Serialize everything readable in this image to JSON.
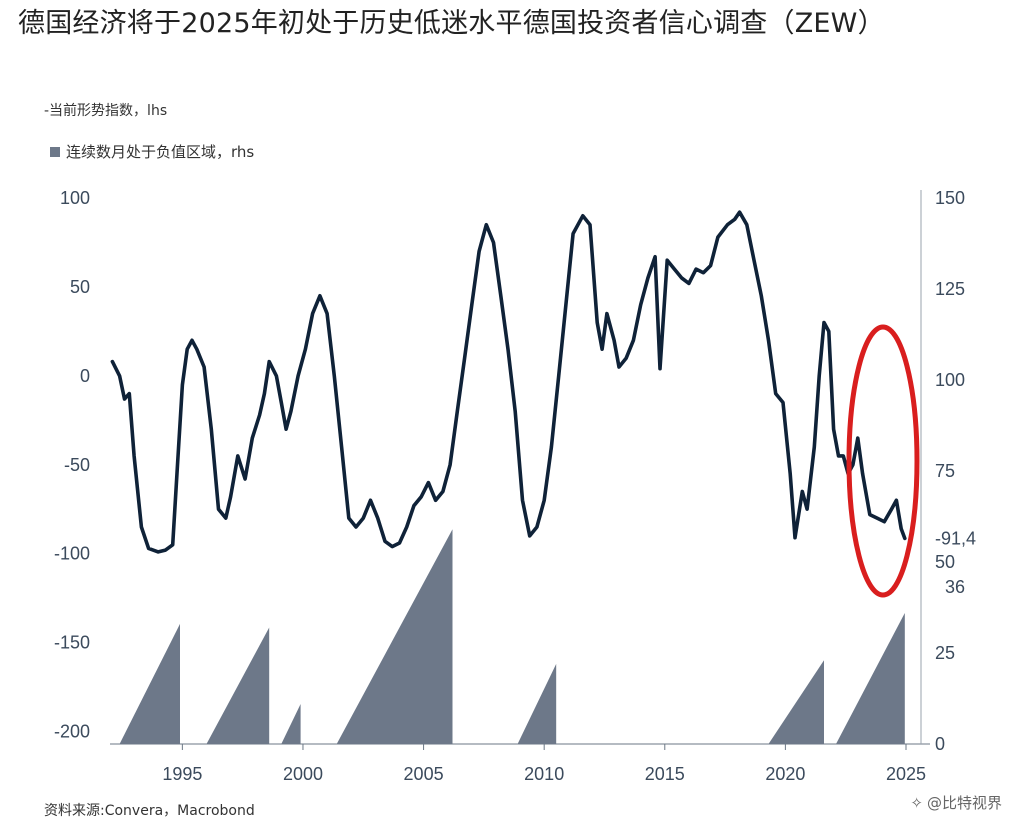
{
  "title": "德国经济将于2025年初处于历史低迷水平德国投资者信心调查（ZEW）",
  "legend": {
    "line_label": "-当前形势指数，lhs",
    "area_label": "连续数月处于负值区域，rhs",
    "area_color": "#6d7889",
    "line_color": "#0f2238"
  },
  "source": "资料来源:Convera，Macrobond",
  "watermark": "@比特视界",
  "highlight_color": "#d91e1e",
  "chart_data": {
    "type": "line",
    "x_ticks": [
      "1995",
      "2000",
      "2005",
      "2010",
      "2015",
      "2020",
      "2025"
    ],
    "y_left_ticks": [
      "100",
      "50",
      "0",
      "-50",
      "-100",
      "-150",
      "-200"
    ],
    "y_right_ticks": [
      "150",
      "125",
      "100",
      "75",
      "50",
      "25",
      "0"
    ],
    "ylim_left": [
      -207,
      100
    ],
    "ylim_right": [
      0,
      150
    ],
    "xlim": [
      1992.0,
      2025.0
    ],
    "annotations": [
      {
        "axis": "right",
        "label": "-91,4",
        "value": -91.4
      },
      {
        "axis": "right",
        "label": "36",
        "value": 36
      }
    ],
    "series": [
      {
        "axis": "left",
        "points": [
          [
            1992.1,
            8
          ],
          [
            1992.4,
            0
          ],
          [
            1992.6,
            -13
          ],
          [
            1992.8,
            -10
          ],
          [
            1993.0,
            -45
          ],
          [
            1993.3,
            -85
          ],
          [
            1993.6,
            -97
          ],
          [
            1994.0,
            -99
          ],
          [
            1994.3,
            -98
          ],
          [
            1994.6,
            -95
          ],
          [
            1994.8,
            -50
          ],
          [
            1995.0,
            -5
          ],
          [
            1995.2,
            15
          ],
          [
            1995.4,
            20
          ],
          [
            1995.6,
            15
          ],
          [
            1995.9,
            5
          ],
          [
            1996.2,
            -30
          ],
          [
            1996.5,
            -75
          ],
          [
            1996.8,
            -80
          ],
          [
            1997.0,
            -68
          ],
          [
            1997.3,
            -45
          ],
          [
            1997.6,
            -58
          ],
          [
            1997.9,
            -35
          ],
          [
            1998.2,
            -22
          ],
          [
            1998.4,
            -10
          ],
          [
            1998.6,
            8
          ],
          [
            1998.9,
            0
          ],
          [
            1999.1,
            -15
          ],
          [
            1999.3,
            -30
          ],
          [
            1999.5,
            -20
          ],
          [
            1999.8,
            0
          ],
          [
            2000.1,
            15
          ],
          [
            2000.4,
            35
          ],
          [
            2000.7,
            45
          ],
          [
            2001.0,
            35
          ],
          [
            2001.3,
            0
          ],
          [
            2001.6,
            -40
          ],
          [
            2001.9,
            -80
          ],
          [
            2002.2,
            -85
          ],
          [
            2002.5,
            -80
          ],
          [
            2002.8,
            -70
          ],
          [
            2003.1,
            -80
          ],
          [
            2003.4,
            -93
          ],
          [
            2003.7,
            -96
          ],
          [
            2004.0,
            -94
          ],
          [
            2004.3,
            -85
          ],
          [
            2004.6,
            -73
          ],
          [
            2004.9,
            -68
          ],
          [
            2005.2,
            -60
          ],
          [
            2005.5,
            -70
          ],
          [
            2005.8,
            -65
          ],
          [
            2006.1,
            -50
          ],
          [
            2006.4,
            -20
          ],
          [
            2006.7,
            10
          ],
          [
            2007.0,
            40
          ],
          [
            2007.3,
            70
          ],
          [
            2007.6,
            85
          ],
          [
            2007.9,
            75
          ],
          [
            2008.2,
            45
          ],
          [
            2008.5,
            15
          ],
          [
            2008.8,
            -20
          ],
          [
            2009.1,
            -70
          ],
          [
            2009.4,
            -90
          ],
          [
            2009.7,
            -85
          ],
          [
            2010.0,
            -70
          ],
          [
            2010.3,
            -40
          ],
          [
            2010.6,
            0
          ],
          [
            2010.9,
            40
          ],
          [
            2011.2,
            80
          ],
          [
            2011.6,
            90
          ],
          [
            2011.9,
            85
          ],
          [
            2012.2,
            30
          ],
          [
            2012.4,
            15
          ],
          [
            2012.6,
            35
          ],
          [
            2012.9,
            20
          ],
          [
            2013.1,
            5
          ],
          [
            2013.4,
            10
          ],
          [
            2013.7,
            20
          ],
          [
            2014.0,
            40
          ],
          [
            2014.3,
            55
          ],
          [
            2014.6,
            67
          ],
          [
            2014.8,
            4
          ],
          [
            2015.1,
            65
          ],
          [
            2015.4,
            60
          ],
          [
            2015.7,
            55
          ],
          [
            2016.0,
            52
          ],
          [
            2016.3,
            60
          ],
          [
            2016.6,
            58
          ],
          [
            2016.9,
            62
          ],
          [
            2017.2,
            78
          ],
          [
            2017.6,
            85
          ],
          [
            2017.9,
            88
          ],
          [
            2018.1,
            92
          ],
          [
            2018.4,
            85
          ],
          [
            2018.7,
            65
          ],
          [
            2019.0,
            45
          ],
          [
            2019.3,
            20
          ],
          [
            2019.6,
            -10
          ],
          [
            2019.9,
            -15
          ],
          [
            2020.2,
            -55
          ],
          [
            2020.4,
            -91
          ],
          [
            2020.7,
            -65
          ],
          [
            2020.9,
            -75
          ],
          [
            2021.2,
            -40
          ],
          [
            2021.4,
            0
          ],
          [
            2021.6,
            30
          ],
          [
            2021.8,
            25
          ],
          [
            2022.0,
            -30
          ],
          [
            2022.2,
            -45
          ],
          [
            2022.4,
            -45
          ],
          [
            2022.6,
            -55
          ],
          [
            2022.8,
            -50
          ],
          [
            2023.0,
            -35
          ],
          [
            2023.2,
            -55
          ],
          [
            2023.5,
            -78
          ],
          [
            2023.8,
            -80
          ],
          [
            2024.1,
            -82
          ],
          [
            2024.4,
            -75
          ],
          [
            2024.6,
            -70
          ],
          [
            2024.8,
            -86
          ],
          [
            2024.95,
            -91.4
          ]
        ]
      },
      {
        "axis": "right",
        "type": "area",
        "segments": [
          [
            [
              1992.4,
              0
            ],
            [
              1994.9,
              33
            ],
            [
              1994.9,
              0
            ]
          ],
          [
            [
              1996.0,
              0
            ],
            [
              1998.6,
              32
            ],
            [
              1998.6,
              0
            ]
          ],
          [
            [
              1999.1,
              0
            ],
            [
              1999.9,
              11
            ],
            [
              1999.9,
              0
            ]
          ],
          [
            [
              2001.4,
              0
            ],
            [
              2006.2,
              59
            ],
            [
              2006.2,
              0
            ]
          ],
          [
            [
              2008.9,
              0
            ],
            [
              2010.5,
              22
            ],
            [
              2010.5,
              0
            ]
          ],
          [
            [
              2019.3,
              0
            ],
            [
              2021.6,
              23
            ],
            [
              2021.6,
              0
            ]
          ],
          [
            [
              2022.1,
              0
            ],
            [
              2024.95,
              36
            ],
            [
              2024.95,
              0
            ]
          ]
        ]
      }
    ]
  }
}
